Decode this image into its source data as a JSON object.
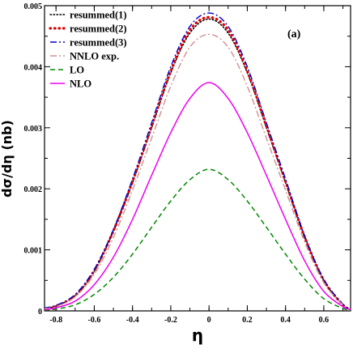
{
  "chart_data": {
    "type": "line",
    "title": "",
    "xlabel": "η",
    "ylabel": "dσ/dη (nb)",
    "panel_label": "(a)",
    "xlim": [
      -0.86,
      0.74
    ],
    "ylim": [
      0,
      0.005
    ],
    "x_ticks": [
      -0.8,
      -0.6,
      -0.4,
      -0.2,
      0,
      0.2,
      0.4,
      0.6
    ],
    "x_tick_labels": [
      "-0.8",
      "-0.6",
      "-0.4",
      "-0.2",
      "0",
      "0.2",
      "0.4",
      "0.6"
    ],
    "y_ticks": [
      0,
      0.001,
      0.002,
      0.003,
      0.004,
      0.005
    ],
    "y_tick_labels": [
      "0",
      "0.001",
      "0.002",
      "0.003",
      "0.004",
      "0.005"
    ],
    "legend_position": "top-left",
    "grid": false,
    "series": [
      {
        "name": "resummed(1)",
        "color": "#000000",
        "style": "dotted",
        "x": [
          -0.86,
          -0.8,
          -0.7,
          -0.6,
          -0.5,
          -0.4,
          -0.3,
          -0.2,
          -0.1,
          0,
          0.1,
          0.2,
          0.3,
          0.4,
          0.5,
          0.6,
          0.7,
          0.74
        ],
        "y": [
          4e-05,
          8e-05,
          0.00025,
          0.00065,
          0.0013,
          0.0021,
          0.003,
          0.0039,
          0.00455,
          0.00478,
          0.00455,
          0.0039,
          0.003,
          0.0021,
          0.0012,
          0.0005,
          0.0001,
          3e-05
        ]
      },
      {
        "name": "resummed(2)",
        "color": "#e00000",
        "style": "heavy-dotted",
        "x": [
          -0.86,
          -0.8,
          -0.7,
          -0.6,
          -0.5,
          -0.4,
          -0.3,
          -0.2,
          -0.1,
          0,
          0.1,
          0.2,
          0.3,
          0.4,
          0.5,
          0.6,
          0.7,
          0.74
        ],
        "y": [
          4e-05,
          8e-05,
          0.00025,
          0.00066,
          0.00131,
          0.00212,
          0.00303,
          0.00393,
          0.0046,
          0.00481,
          0.0046,
          0.00393,
          0.00303,
          0.00212,
          0.00121,
          0.0005,
          0.0001,
          3e-05
        ]
      },
      {
        "name": "resummed(3)",
        "color": "#0000cc",
        "style": "dash-dot",
        "x": [
          -0.86,
          -0.8,
          -0.7,
          -0.6,
          -0.5,
          -0.4,
          -0.3,
          -0.2,
          -0.1,
          0,
          0.1,
          0.2,
          0.3,
          0.4,
          0.5,
          0.6,
          0.7,
          0.74
        ],
        "y": [
          5e-05,
          9e-05,
          0.00027,
          0.00068,
          0.00133,
          0.00216,
          0.00308,
          0.004,
          0.00466,
          0.00488,
          0.00466,
          0.004,
          0.00308,
          0.00216,
          0.00123,
          0.00052,
          0.00011,
          4e-05
        ]
      },
      {
        "name": "NNLO exp.",
        "color": "#d09090",
        "style": "dash-dot",
        "x": [
          -0.86,
          -0.8,
          -0.7,
          -0.6,
          -0.5,
          -0.4,
          -0.3,
          -0.2,
          -0.1,
          0,
          0.1,
          0.2,
          0.3,
          0.4,
          0.5,
          0.6,
          0.7,
          0.74
        ],
        "y": [
          4e-05,
          7e-05,
          0.00023,
          0.0006,
          0.0012,
          0.00198,
          0.00283,
          0.00368,
          0.00432,
          0.00453,
          0.00432,
          0.00368,
          0.00283,
          0.00198,
          0.00113,
          0.00046,
          0.0001,
          3e-05
        ]
      },
      {
        "name": "LO",
        "color": "#008800",
        "style": "dashed",
        "x": [
          -0.86,
          -0.8,
          -0.7,
          -0.6,
          -0.5,
          -0.4,
          -0.3,
          -0.2,
          -0.1,
          0,
          0.1,
          0.2,
          0.3,
          0.4,
          0.5,
          0.6,
          0.7,
          0.74
        ],
        "y": [
          1e-05,
          3e-05,
          0.0001,
          0.00027,
          0.00055,
          0.00093,
          0.00137,
          0.0018,
          0.00215,
          0.00232,
          0.00215,
          0.0018,
          0.00137,
          0.00093,
          0.00052,
          0.0002,
          4e-05,
          1e-05
        ]
      },
      {
        "name": "NLO",
        "color": "#ee00ee",
        "style": "solid",
        "x": [
          -0.86,
          -0.8,
          -0.7,
          -0.6,
          -0.5,
          -0.4,
          -0.3,
          -0.2,
          -0.1,
          0,
          0.1,
          0.2,
          0.3,
          0.4,
          0.5,
          0.6,
          0.7,
          0.74
        ],
        "y": [
          2e-05,
          5e-05,
          0.00016,
          0.00043,
          0.00088,
          0.0015,
          0.00222,
          0.00292,
          0.00348,
          0.00374,
          0.00348,
          0.00292,
          0.00222,
          0.0015,
          0.00082,
          0.00032,
          7e-05,
          2e-05
        ]
      }
    ]
  }
}
